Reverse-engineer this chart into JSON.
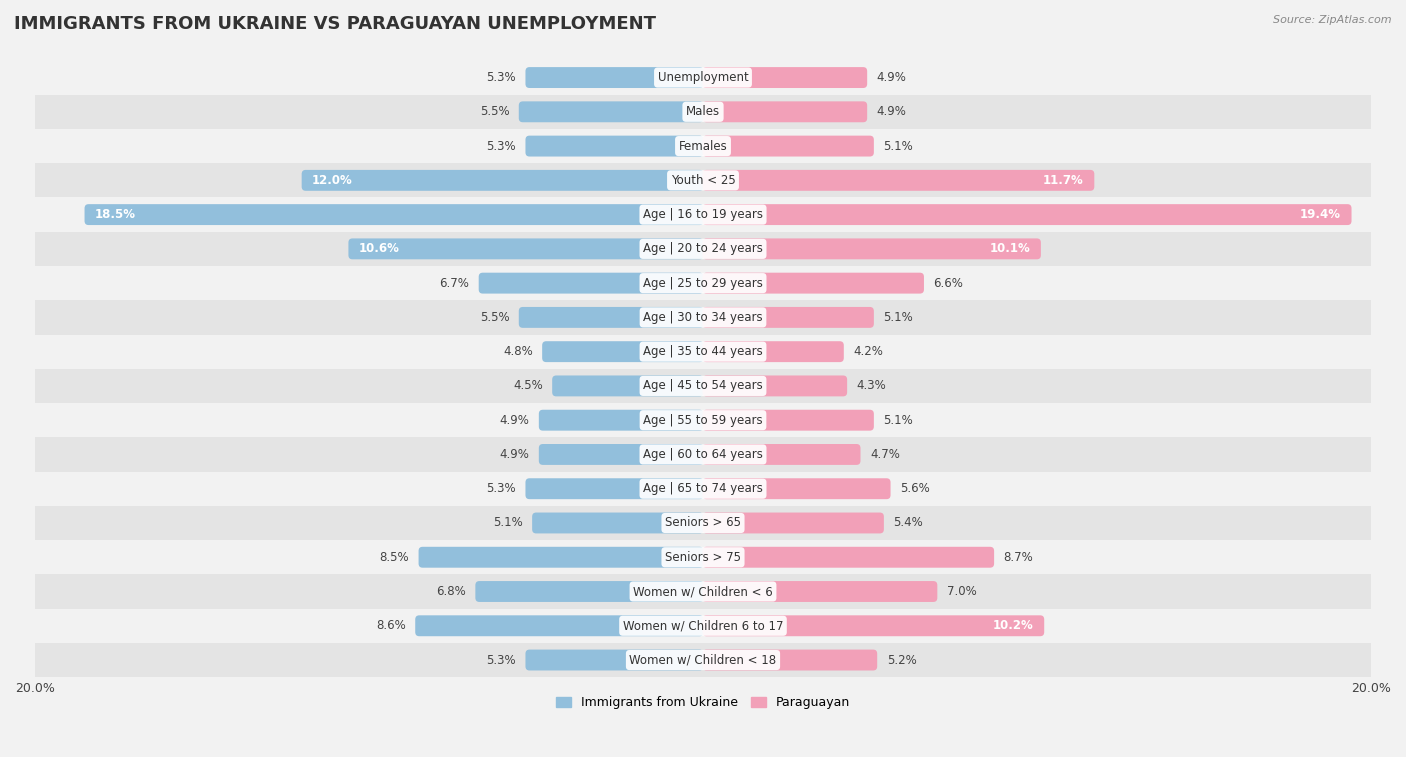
{
  "title": "IMMIGRANTS FROM UKRAINE VS PARAGUAYAN UNEMPLOYMENT",
  "source": "Source: ZipAtlas.com",
  "categories": [
    "Unemployment",
    "Males",
    "Females",
    "Youth < 25",
    "Age | 16 to 19 years",
    "Age | 20 to 24 years",
    "Age | 25 to 29 years",
    "Age | 30 to 34 years",
    "Age | 35 to 44 years",
    "Age | 45 to 54 years",
    "Age | 55 to 59 years",
    "Age | 60 to 64 years",
    "Age | 65 to 74 years",
    "Seniors > 65",
    "Seniors > 75",
    "Women w/ Children < 6",
    "Women w/ Children 6 to 17",
    "Women w/ Children < 18"
  ],
  "ukraine_values": [
    5.3,
    5.5,
    5.3,
    12.0,
    18.5,
    10.6,
    6.7,
    5.5,
    4.8,
    4.5,
    4.9,
    4.9,
    5.3,
    5.1,
    8.5,
    6.8,
    8.6,
    5.3
  ],
  "paraguay_values": [
    4.9,
    4.9,
    5.1,
    11.7,
    19.4,
    10.1,
    6.6,
    5.1,
    4.2,
    4.3,
    5.1,
    4.7,
    5.6,
    5.4,
    8.7,
    7.0,
    10.2,
    5.2
  ],
  "ukraine_color": "#92bfdc",
  "paraguay_color": "#f2a0b8",
  "ukraine_color_dark": "#5a9dc8",
  "paraguay_color_dark": "#ee7a9b",
  "ukraine_label": "Immigrants from Ukraine",
  "paraguay_label": "Paraguayan",
  "max_value": 20.0,
  "row_color_light": "#f2f2f2",
  "row_color_dark": "#e4e4e4",
  "title_fontsize": 13,
  "label_fontsize": 8.5,
  "value_fontsize": 8.5,
  "value_threshold": 9.0
}
